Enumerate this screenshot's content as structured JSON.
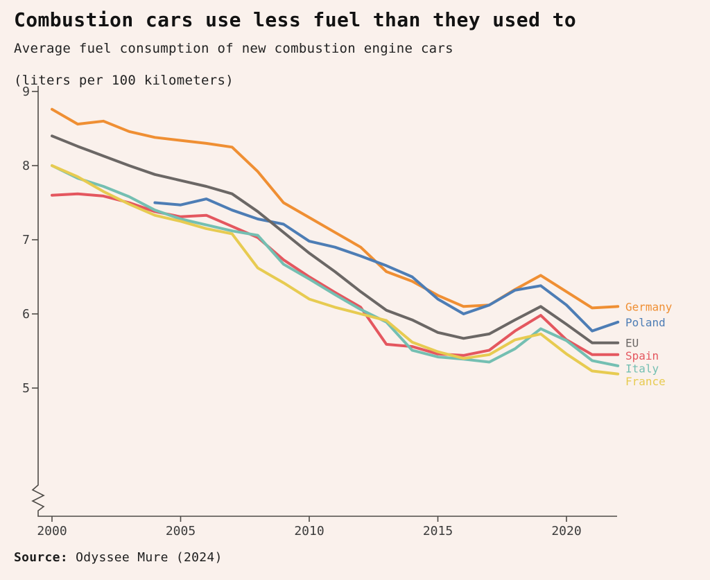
{
  "title": "Combustion cars use less fuel than they used to",
  "subtitle": {
    "line1": "Average fuel consumption of new combustion engine cars",
    "line2": "(liters per 100 kilometers)"
  },
  "source": {
    "label": "Source:",
    "text": "Odyssee Mure (2024)"
  },
  "style": {
    "background": "#FAF1EC",
    "axis_color": "#4d4a46",
    "tick_label_color": "#3b3b3b"
  },
  "chart_data": {
    "type": "line",
    "x": [
      2000,
      2001,
      2002,
      2003,
      2004,
      2005,
      2006,
      2007,
      2008,
      2009,
      2010,
      2011,
      2012,
      2013,
      2014,
      2015,
      2016,
      2017,
      2018,
      2019,
      2020,
      2021,
      2022
    ],
    "xticks": [
      2000,
      2005,
      2010,
      2015,
      2020
    ],
    "yticks": [
      9,
      8,
      7,
      6,
      5
    ],
    "ylim": [
      5,
      9
    ],
    "axis_break_at_bottom": true,
    "grid": false,
    "legend_position": "right-of-line-ends",
    "series": [
      {
        "name": "Germany",
        "color": "#EF8F33",
        "values": [
          8.76,
          8.56,
          8.6,
          8.46,
          8.38,
          8.34,
          8.3,
          8.25,
          7.92,
          7.5,
          7.3,
          7.1,
          6.9,
          6.57,
          6.44,
          6.25,
          6.1,
          6.12,
          6.33,
          6.52,
          6.3,
          6.08,
          6.1
        ]
      },
      {
        "name": "Poland",
        "color": "#4D7DB5",
        "values": [
          null,
          null,
          null,
          null,
          7.5,
          7.47,
          7.55,
          7.4,
          7.28,
          7.21,
          6.98,
          6.9,
          6.78,
          6.65,
          6.5,
          6.2,
          6.0,
          6.12,
          6.32,
          6.38,
          6.12,
          5.77,
          5.89
        ]
      },
      {
        "name": "EU",
        "color": "#6B6765",
        "values": [
          8.4,
          8.26,
          8.13,
          8.0,
          7.88,
          7.8,
          7.72,
          7.62,
          7.38,
          7.1,
          6.82,
          6.57,
          6.3,
          6.05,
          5.92,
          5.75,
          5.67,
          5.73,
          5.92,
          6.1,
          5.86,
          5.61,
          5.61
        ]
      },
      {
        "name": "Spain",
        "color": "#E4575F",
        "values": [
          7.6,
          7.62,
          7.59,
          7.5,
          7.38,
          7.31,
          7.33,
          7.18,
          7.03,
          6.73,
          6.5,
          6.29,
          6.09,
          5.59,
          5.56,
          5.46,
          5.44,
          5.51,
          5.77,
          5.98,
          5.65,
          5.45,
          5.45
        ]
      },
      {
        "name": "Italy",
        "color": "#74BFB2",
        "values": [
          8.0,
          7.83,
          7.72,
          7.58,
          7.4,
          7.28,
          7.2,
          7.12,
          7.06,
          6.67,
          6.47,
          6.26,
          6.06,
          5.89,
          5.51,
          5.42,
          5.39,
          5.35,
          5.53,
          5.8,
          5.64,
          5.37,
          5.3
        ]
      },
      {
        "name": "France",
        "color": "#E7CB51",
        "values": [
          8.0,
          7.85,
          7.65,
          7.48,
          7.33,
          7.25,
          7.15,
          7.08,
          6.62,
          6.42,
          6.2,
          6.09,
          6.0,
          5.91,
          5.62,
          5.49,
          5.4,
          5.45,
          5.65,
          5.73,
          5.46,
          5.23,
          5.19
        ]
      }
    ]
  }
}
